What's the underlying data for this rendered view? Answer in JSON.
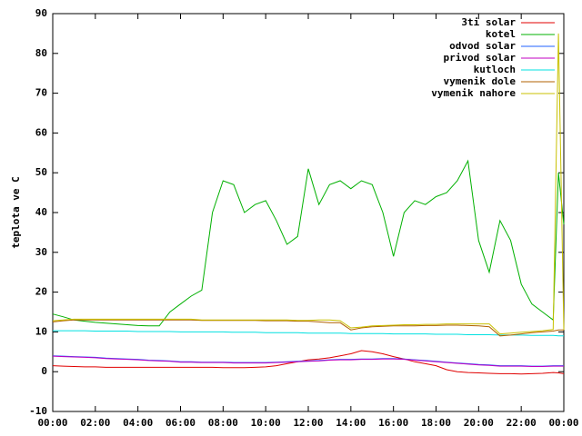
{
  "chart_data": {
    "type": "line",
    "y_label": "teplota ve C",
    "x": [
      0,
      0.5,
      1,
      1.5,
      2,
      2.5,
      3,
      3.5,
      4,
      4.5,
      5,
      5.5,
      6,
      6.5,
      7,
      7.5,
      8,
      8.5,
      9,
      9.5,
      10,
      10.5,
      11,
      11.5,
      12,
      12.5,
      13,
      13.5,
      14,
      14.5,
      15,
      15.5,
      16,
      16.5,
      17,
      17.5,
      18,
      18.5,
      19,
      19.5,
      20,
      20.5,
      21,
      21.5,
      22,
      22.5,
      23,
      23.5,
      23.75,
      24
    ],
    "xlim": [
      0,
      24
    ],
    "xticks": [
      {
        "value": 0,
        "label": "00:00"
      },
      {
        "value": 2,
        "label": "02:00"
      },
      {
        "value": 4,
        "label": "04:00"
      },
      {
        "value": 6,
        "label": "06:00"
      },
      {
        "value": 8,
        "label": "08:00"
      },
      {
        "value": 10,
        "label": "10:00"
      },
      {
        "value": 12,
        "label": "12:00"
      },
      {
        "value": 14,
        "label": "14:00"
      },
      {
        "value": 16,
        "label": "16:00"
      },
      {
        "value": 18,
        "label": "18:00"
      },
      {
        "value": 20,
        "label": "20:00"
      },
      {
        "value": 22,
        "label": "22:00"
      },
      {
        "value": 24,
        "label": "00:00"
      }
    ],
    "ylim": [
      -10,
      90
    ],
    "yticks": [
      -10,
      0,
      10,
      20,
      30,
      40,
      50,
      60,
      70,
      80,
      90
    ],
    "legend": "top-right",
    "series": [
      {
        "name": "3ti solar",
        "color": "#e00000",
        "values": [
          1.5,
          1.4,
          1.3,
          1.2,
          1.2,
          1.1,
          1.1,
          1.1,
          1.1,
          1.1,
          1.1,
          1.1,
          1.1,
          1.1,
          1.1,
          1.1,
          1,
          1,
          1,
          1.1,
          1.2,
          1.5,
          2,
          2.5,
          3,
          3.2,
          3.5,
          4,
          4.5,
          5.3,
          5,
          4.5,
          3.8,
          3.2,
          2.5,
          2,
          1.5,
          0.5,
          0,
          -0.2,
          -0.3,
          -0.4,
          -0.5,
          -0.5,
          -0.6,
          -0.5,
          -0.4,
          -0.2,
          -0.3,
          -0.5
        ]
      },
      {
        "name": "kotel",
        "color": "#00b000",
        "values": [
          14.5,
          13.8,
          13,
          12.7,
          12.4,
          12.2,
          12,
          11.8,
          11.6,
          11.5,
          11.5,
          15,
          17,
          19,
          20.5,
          40,
          48,
          47,
          40,
          42,
          43,
          38,
          32,
          34,
          51,
          42,
          47,
          48,
          46,
          48,
          47,
          40,
          29,
          40,
          43,
          42,
          44,
          45,
          48,
          53,
          33,
          25,
          38,
          33,
          22,
          17,
          15,
          13,
          50,
          37
        ]
      },
      {
        "name": "odvod solar",
        "color": "#2060ff",
        "values": [
          4,
          3.9,
          3.8,
          3.7,
          3.6,
          3.4,
          3.3,
          3.2,
          3.1,
          2.9,
          2.8,
          2.7,
          2.5,
          2.5,
          2.4,
          2.4,
          2.4,
          2.3,
          2.3,
          2.3,
          2.3,
          2.4,
          2.5,
          2.6,
          2.7,
          2.8,
          3,
          3.1,
          3.1,
          3.2,
          3.2,
          3.3,
          3.3,
          3.2,
          3,
          2.8,
          2.6,
          2.4,
          2.2,
          2,
          1.8,
          1.7,
          1.5,
          1.5,
          1.5,
          1.4,
          1.4,
          1.5,
          1.5,
          1.5
        ]
      },
      {
        "name": "privod solar",
        "color": "#c000c0",
        "values": [
          3.9,
          3.8,
          3.7,
          3.6,
          3.5,
          3.3,
          3.2,
          3.1,
          3,
          2.8,
          2.7,
          2.6,
          2.4,
          2.4,
          2.3,
          2.3,
          2.3,
          2.2,
          2.2,
          2.2,
          2.2,
          2.3,
          2.4,
          2.5,
          2.6,
          2.7,
          2.9,
          3,
          3,
          3.1,
          3.1,
          3.2,
          3.2,
          3.1,
          2.9,
          2.7,
          2.5,
          2.3,
          2.1,
          1.9,
          1.7,
          1.6,
          1.4,
          1.4,
          1.4,
          1.3,
          1.3,
          1.4,
          1.4,
          1.4
        ]
      },
      {
        "name": "kutloch",
        "color": "#00e0e0",
        "values": [
          10.3,
          10.3,
          10.3,
          10.3,
          10.2,
          10.2,
          10.2,
          10.2,
          10.1,
          10.1,
          10.1,
          10.1,
          10,
          10,
          10,
          10,
          10,
          9.9,
          9.9,
          9.9,
          9.8,
          9.8,
          9.8,
          9.8,
          9.7,
          9.7,
          9.7,
          9.7,
          9.6,
          9.6,
          9.6,
          9.6,
          9.5,
          9.5,
          9.5,
          9.5,
          9.4,
          9.4,
          9.4,
          9.3,
          9.3,
          9.3,
          9.2,
          9.2,
          9.2,
          9.1,
          9.1,
          9.1,
          9,
          9
        ]
      },
      {
        "name": "vymenik dole",
        "color": "#b06000",
        "values": [
          12.5,
          12.8,
          13,
          13,
          13,
          13,
          13,
          13,
          13,
          13,
          13,
          13,
          13,
          13,
          12.9,
          12.9,
          12.9,
          12.9,
          12.9,
          12.9,
          12.8,
          12.8,
          12.8,
          12.7,
          12.7,
          12.5,
          12.3,
          12.3,
          10.5,
          11,
          11.3,
          11.4,
          11.5,
          11.5,
          11.5,
          11.6,
          11.6,
          11.7,
          11.7,
          11.6,
          11.5,
          11.3,
          9,
          9.2,
          9.5,
          9.8,
          10,
          10.2,
          10.5,
          10.5
        ]
      },
      {
        "name": "vymenik nahore",
        "color": "#c8c000",
        "values": [
          12.8,
          13,
          13.2,
          13.2,
          13.2,
          13.2,
          13.2,
          13.2,
          13.2,
          13.2,
          13.2,
          13.2,
          13.2,
          13.2,
          13,
          13,
          13,
          13,
          13,
          13,
          13,
          13,
          13,
          12.9,
          12.9,
          13,
          13,
          12.8,
          11,
          11.2,
          11.5,
          11.6,
          11.7,
          11.8,
          11.8,
          11.9,
          11.9,
          12,
          12,
          12,
          12,
          12,
          9.5,
          9.7,
          9.9,
          10.1,
          10.3,
          10.6,
          85,
          10.5
        ]
      }
    ]
  }
}
